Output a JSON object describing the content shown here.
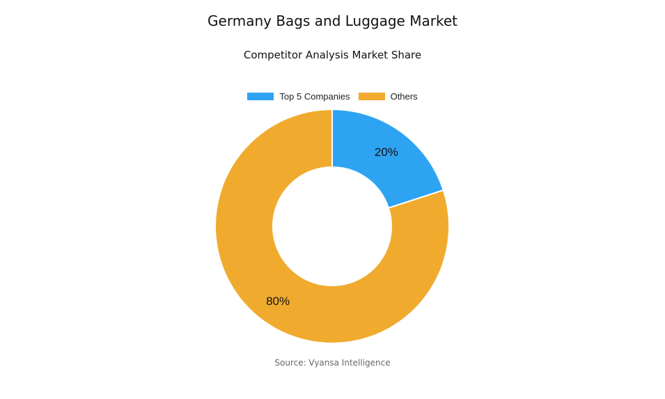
{
  "chart_data": {
    "type": "pie",
    "title": "Germany Bags and Luggage Market",
    "subtitle": "Competitor Analysis Market Share",
    "categories": [
      "Top 5 Companies",
      "Others"
    ],
    "values": [
      20,
      80
    ],
    "data_labels": [
      "20%",
      "80%"
    ],
    "colors": [
      "#2ea3f2",
      "#f0ab2f"
    ],
    "donut": true,
    "legend_position": "top"
  },
  "source": "Source: Vyansa Intelligence"
}
